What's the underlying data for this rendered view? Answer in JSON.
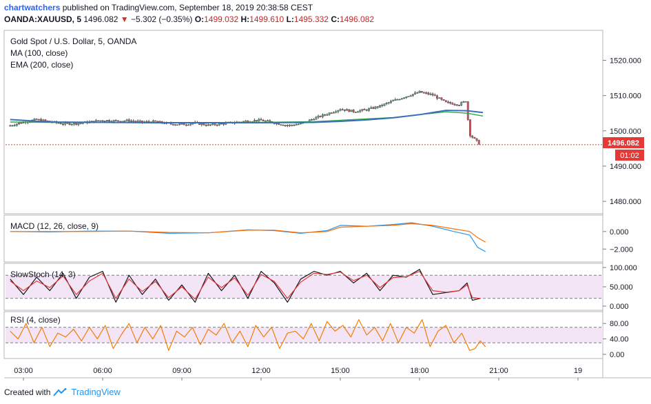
{
  "header": {
    "author": "chartwatchers",
    "published_text": "published on TradingView.com, September 18, 2019 20:38:58 CEST",
    "symbol_line": "OANDA:XAUUSD, 5",
    "last_price": "1496.082",
    "arrow": "▼",
    "change": "−5.302 (−0.35%)",
    "open_label": "O:",
    "open_value": "1499.032",
    "high_label": "H:",
    "high_value": "1499.610",
    "low_label": "L:",
    "low_value": "1495.332",
    "close_label": "C:",
    "close_value": "1496.082"
  },
  "footer": {
    "created_with": "Created with",
    "brand": "TradingView"
  },
  "colors": {
    "up_candle": "#53b987",
    "down_candle": "#eb4d5c",
    "ma100": "#2ea84a",
    "ema200": "#3a6fb8",
    "macd": "#2196f3",
    "signal": "#ff6d00",
    "stoch_k": "#131722",
    "stoch_d": "#e53935",
    "rsi": "#f57c00",
    "band_fill": "#f3e5f5",
    "price_label": "#e53935"
  },
  "chart_data": [
    {
      "type": "candlestick",
      "pane": "price",
      "title": "Gold Spot / U.S. Dollar, 5, OANDA",
      "indicators": [
        "MA (100, close)",
        "EMA (200, close)"
      ],
      "x_ticks": [
        "03:00",
        "06:00",
        "09:00",
        "12:00",
        "15:00",
        "18:00",
        "21:00",
        "19"
      ],
      "y_ticks": [
        "1520.000",
        "1510.000",
        "1500.000",
        "1490.000",
        "1480.000"
      ],
      "ylim": [
        1476.5,
        1528.5
      ],
      "last_price_label": "1496.082",
      "countdown_label": "01:02",
      "close_series": {
        "time_hours": [
          2.5,
          3.0,
          3.5,
          4.0,
          4.5,
          5.0,
          5.5,
          6.0,
          6.5,
          7.0,
          7.5,
          8.0,
          8.5,
          9.0,
          9.5,
          10.0,
          10.5,
          11.0,
          11.5,
          12.0,
          12.5,
          13.0,
          13.5,
          14.0,
          14.5,
          15.0,
          15.5,
          16.0,
          16.5,
          17.0,
          17.5,
          18.0,
          18.5,
          19.0,
          19.5,
          19.75,
          19.9,
          20.1,
          20.3
        ],
        "price": [
          1501.5,
          1502.5,
          1503.2,
          1502.6,
          1502.0,
          1502.1,
          1502.5,
          1503.0,
          1502.8,
          1502.9,
          1502.5,
          1502.6,
          1502.0,
          1501.8,
          1502.2,
          1501.6,
          1502.0,
          1502.4,
          1502.8,
          1503.0,
          1502.3,
          1501.5,
          1502.0,
          1503.5,
          1504.8,
          1506.2,
          1505.5,
          1506.0,
          1507.0,
          1508.5,
          1509.8,
          1511.0,
          1510.2,
          1508.0,
          1507.5,
          1508.5,
          1499.0,
          1497.5,
          1496.082
        ]
      },
      "ma100": {
        "time_hours": [
          2.5,
          4.0,
          6.0,
          8.0,
          10.0,
          12.0,
          14.0,
          15.0,
          16.0,
          17.0,
          18.0,
          19.0,
          19.8,
          20.4
        ],
        "value": [
          1502.5,
          1502.4,
          1502.4,
          1502.3,
          1502.3,
          1502.4,
          1502.6,
          1503.0,
          1503.4,
          1503.8,
          1504.6,
          1505.4,
          1505.0,
          1504.2
        ]
      },
      "ema200": {
        "time_hours": [
          2.5,
          4.0,
          6.0,
          8.0,
          10.0,
          12.0,
          14.0,
          15.0,
          16.0,
          17.0,
          18.0,
          19.0,
          19.8,
          20.4
        ],
        "value": [
          1503.2,
          1502.5,
          1502.4,
          1502.3,
          1502.3,
          1502.3,
          1502.4,
          1502.7,
          1503.1,
          1503.7,
          1504.6,
          1505.8,
          1505.7,
          1505.2
        ]
      }
    },
    {
      "type": "line",
      "pane": "macd",
      "title": "MACD (12, 26, close, 9)",
      "y_ticks": [
        "0.000",
        "−2.000"
      ],
      "ylim": [
        -3.0,
        1.4
      ],
      "series": [
        {
          "name": "MACD",
          "time_hours": [
            2.5,
            4.0,
            5.5,
            7.0,
            8.5,
            10.0,
            11.5,
            12.5,
            13.5,
            14.5,
            15.0,
            16.0,
            17.0,
            17.7,
            18.5,
            19.3,
            19.9,
            20.2,
            20.5
          ],
          "values": [
            0.0,
            -0.05,
            0.05,
            0.05,
            -0.2,
            -0.15,
            0.2,
            0.1,
            -0.2,
            0.1,
            0.7,
            0.6,
            0.8,
            1.0,
            0.6,
            0.0,
            -0.4,
            -1.8,
            -2.3
          ]
        },
        {
          "name": "Signal",
          "time_hours": [
            2.5,
            4.0,
            5.5,
            7.0,
            8.5,
            10.0,
            11.5,
            12.5,
            13.5,
            14.5,
            15.0,
            16.0,
            17.0,
            17.7,
            18.5,
            19.3,
            19.9,
            20.2,
            20.5
          ],
          "values": [
            0.0,
            0.0,
            0.0,
            0.05,
            -0.1,
            -0.15,
            0.15,
            0.15,
            -0.15,
            0.0,
            0.5,
            0.6,
            0.7,
            0.9,
            0.7,
            0.3,
            0.0,
            -0.7,
            -1.2
          ]
        }
      ]
    },
    {
      "type": "line",
      "pane": "stochastic",
      "title": "SlowStoch (14, 3)",
      "y_ticks": [
        "100.000",
        "50.000",
        "0.000"
      ],
      "ylim": [
        0,
        100
      ],
      "bands": [
        80,
        20
      ],
      "series": [
        {
          "name": "%K",
          "time_hours": [
            2.5,
            3.0,
            3.5,
            4.0,
            4.5,
            5.0,
            5.5,
            6.0,
            6.5,
            7.0,
            7.5,
            8.0,
            8.5,
            9.0,
            9.5,
            10.0,
            10.5,
            11.0,
            11.5,
            12.0,
            12.5,
            13.0,
            13.5,
            14.0,
            14.5,
            15.0,
            15.5,
            16.0,
            16.5,
            17.0,
            17.5,
            18.0,
            18.5,
            19.0,
            19.5,
            19.8,
            20.0,
            20.3
          ],
          "values": [
            70,
            30,
            75,
            40,
            85,
            20,
            75,
            90,
            10,
            80,
            30,
            70,
            15,
            55,
            10,
            85,
            40,
            80,
            20,
            90,
            60,
            10,
            70,
            90,
            80,
            90,
            60,
            85,
            40,
            80,
            75,
            95,
            30,
            35,
            40,
            60,
            15,
            20
          ]
        },
        {
          "name": "%D",
          "time_hours": [
            2.5,
            3.0,
            3.5,
            4.0,
            4.5,
            5.0,
            5.5,
            6.0,
            6.5,
            7.0,
            7.5,
            8.0,
            8.5,
            9.0,
            9.5,
            10.0,
            10.5,
            11.0,
            11.5,
            12.0,
            12.5,
            13.0,
            13.5,
            14.0,
            14.5,
            15.0,
            15.5,
            16.0,
            16.5,
            17.0,
            17.5,
            18.0,
            18.5,
            19.0,
            19.5,
            19.8,
            20.0,
            20.3
          ],
          "values": [
            65,
            40,
            65,
            48,
            78,
            30,
            65,
            85,
            20,
            70,
            38,
            64,
            22,
            50,
            18,
            75,
            48,
            73,
            28,
            82,
            64,
            20,
            62,
            85,
            82,
            88,
            66,
            80,
            48,
            74,
            76,
            90,
            40,
            36,
            40,
            55,
            22,
            20
          ]
        }
      ]
    },
    {
      "type": "line",
      "pane": "rsi",
      "title": "RSI (4, close)",
      "y_ticks": [
        "80.00",
        "40.00",
        "0.00"
      ],
      "ylim": [
        0,
        100
      ],
      "bands": [
        70,
        30
      ],
      "series": [
        {
          "name": "RSI",
          "time_hours": [
            2.5,
            2.8,
            3.1,
            3.4,
            3.7,
            4.0,
            4.3,
            4.6,
            4.9,
            5.2,
            5.5,
            5.8,
            6.1,
            6.4,
            6.7,
            7.0,
            7.3,
            7.6,
            7.9,
            8.2,
            8.5,
            8.8,
            9.1,
            9.4,
            9.7,
            10.0,
            10.3,
            10.6,
            10.9,
            11.2,
            11.5,
            11.8,
            12.1,
            12.4,
            12.7,
            13.0,
            13.3,
            13.6,
            13.9,
            14.2,
            14.5,
            14.8,
            15.1,
            15.4,
            15.7,
            16.0,
            16.3,
            16.6,
            16.9,
            17.2,
            17.5,
            17.8,
            18.1,
            18.4,
            18.7,
            19.0,
            19.3,
            19.6,
            19.9,
            20.1,
            20.3,
            20.5
          ],
          "values": [
            60,
            40,
            80,
            30,
            70,
            20,
            55,
            45,
            65,
            35,
            70,
            40,
            75,
            15,
            50,
            80,
            30,
            70,
            40,
            75,
            10,
            60,
            45,
            70,
            25,
            65,
            50,
            80,
            30,
            60,
            20,
            75,
            45,
            70,
            15,
            55,
            60,
            40,
            80,
            35,
            85,
            60,
            75,
            45,
            90,
            50,
            70,
            35,
            80,
            30,
            70,
            55,
            90,
            20,
            60,
            75,
            30,
            55,
            10,
            15,
            35,
            20
          ]
        }
      ]
    }
  ]
}
